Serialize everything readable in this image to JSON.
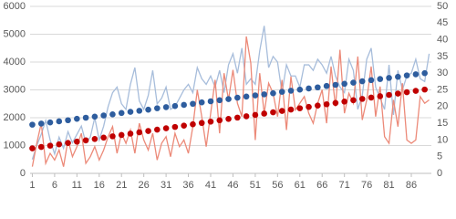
{
  "chart_data": {
    "type": "line",
    "x": [
      1,
      2,
      3,
      4,
      5,
      6,
      7,
      8,
      9,
      10,
      11,
      12,
      13,
      14,
      15,
      16,
      17,
      18,
      19,
      20,
      21,
      22,
      23,
      24,
      25,
      26,
      27,
      28,
      29,
      30,
      31,
      32,
      33,
      34,
      35,
      36,
      37,
      38,
      39,
      40,
      41,
      42,
      43,
      44,
      45,
      46,
      47,
      48,
      49,
      50,
      51,
      52,
      53,
      54,
      55,
      56,
      57,
      58,
      59,
      60,
      61,
      62,
      63,
      64,
      65,
      66,
      67,
      68,
      69,
      70,
      71,
      72,
      73,
      74,
      75,
      76,
      77,
      78,
      79,
      80,
      81,
      82,
      83,
      84,
      85,
      86,
      87,
      88,
      89,
      90
    ],
    "xlim": [
      0.5,
      90.5
    ],
    "xticks": [
      1,
      6,
      11,
      16,
      21,
      26,
      31,
      36,
      41,
      46,
      51,
      56,
      61,
      66,
      71,
      76,
      81,
      86
    ],
    "ylim": [
      0,
      6000
    ],
    "yticks": [
      0,
      1000,
      2000,
      3000,
      4000,
      5000,
      6000
    ],
    "y2lim": [
      0,
      50
    ],
    "y2ticks": [
      0,
      5,
      10,
      15,
      20,
      25,
      30,
      35,
      40,
      45,
      50
    ],
    "grid": true,
    "series": [
      {
        "color": "#a7bddb",
        "style": "line",
        "axis": "y",
        "values": [
          500,
          1000,
          1400,
          1900,
          1200,
          700,
          1300,
          900,
          1500,
          1100,
          1400,
          1700,
          1100,
          1300,
          2000,
          1200,
          1700,
          2400,
          2900,
          3100,
          2500,
          2300,
          3200,
          3800,
          2600,
          2300,
          2800,
          3700,
          2500,
          2700,
          3100,
          2300,
          2400,
          2700,
          3000,
          3200,
          2900,
          3800,
          3400,
          3200,
          3500,
          3100,
          3700,
          2900,
          3900,
          4300,
          3600,
          4500,
          3200,
          3400,
          3200,
          4400,
          5300,
          3800,
          4200,
          4000,
          2900,
          3900,
          3500,
          3500,
          3100,
          3900,
          3900,
          3700,
          4100,
          3900,
          3600,
          4200,
          3500,
          3100,
          2900,
          4100,
          3700,
          2300,
          2800,
          4100,
          4500,
          3100,
          2700,
          2300,
          3900,
          2100,
          3700,
          3000,
          3500,
          3600,
          4100,
          3400,
          3300,
          4300
        ]
      },
      {
        "color": "#ec8a79",
        "style": "line",
        "axis": "y2",
        "values": [
          2,
          9,
          15,
          3,
          6,
          4,
          7,
          2,
          10,
          5,
          8,
          12,
          3,
          5,
          8,
          4,
          7,
          11,
          14,
          6,
          12,
          9,
          13,
          6,
          15,
          10,
          7,
          12,
          4,
          9,
          11,
          5,
          12,
          8,
          10,
          6,
          14,
          25,
          17,
          8,
          18,
          28,
          12,
          30,
          22,
          31,
          21,
          17,
          41,
          33,
          10,
          30,
          18,
          27,
          24,
          17,
          28,
          13,
          29,
          19,
          21,
          23,
          18,
          15,
          21,
          25,
          15,
          32,
          20,
          37,
          18,
          24,
          21,
          35,
          16,
          22,
          32,
          17,
          26,
          11,
          9,
          22,
          14,
          27,
          10,
          9,
          10,
          23,
          21,
          22
        ]
      },
      {
        "color": "#2e5d9e",
        "style": "dots",
        "axis": "y",
        "x": [
          1,
          3,
          5,
          7,
          9,
          11,
          13,
          15,
          17,
          19,
          21,
          23,
          25,
          27,
          29,
          31,
          33,
          35,
          37,
          39,
          41,
          43,
          45,
          47,
          49,
          51,
          53,
          55,
          57,
          59,
          61,
          63,
          65,
          67,
          69,
          71,
          73,
          75,
          77,
          79,
          81,
          83,
          85,
          87,
          89
        ],
        "values": [
          1750,
          1790,
          1830,
          1870,
          1910,
          1960,
          2000,
          2040,
          2080,
          2120,
          2170,
          2210,
          2250,
          2290,
          2340,
          2380,
          2420,
          2460,
          2500,
          2550,
          2590,
          2630,
          2670,
          2720,
          2760,
          2800,
          2840,
          2880,
          2930,
          2970,
          3010,
          3050,
          3090,
          3140,
          3180,
          3220,
          3260,
          3310,
          3350,
          3390,
          3430,
          3470,
          3520,
          3560,
          3600
        ]
      },
      {
        "color": "#c00000",
        "style": "dots",
        "axis": "y2",
        "x": [
          1,
          3,
          5,
          7,
          9,
          11,
          13,
          15,
          17,
          19,
          21,
          23,
          25,
          27,
          29,
          31,
          33,
          35,
          37,
          39,
          41,
          43,
          45,
          47,
          49,
          51,
          53,
          55,
          57,
          59,
          61,
          63,
          65,
          67,
          69,
          71,
          73,
          75,
          77,
          79,
          81,
          83,
          85,
          87,
          89
        ],
        "values": [
          7.5,
          7.9,
          8.3,
          8.7,
          9.1,
          9.5,
          9.9,
          10.3,
          10.7,
          11.1,
          11.5,
          11.9,
          12.3,
          12.7,
          13.1,
          13.5,
          13.9,
          14.3,
          14.7,
          15.1,
          15.5,
          15.9,
          16.3,
          16.7,
          17.1,
          17.5,
          17.9,
          18.3,
          18.7,
          19.1,
          19.5,
          19.9,
          20.3,
          20.7,
          21.1,
          21.5,
          21.9,
          22.3,
          22.7,
          23.1,
          23.5,
          23.9,
          24.3,
          24.7,
          25.1
        ]
      }
    ]
  }
}
